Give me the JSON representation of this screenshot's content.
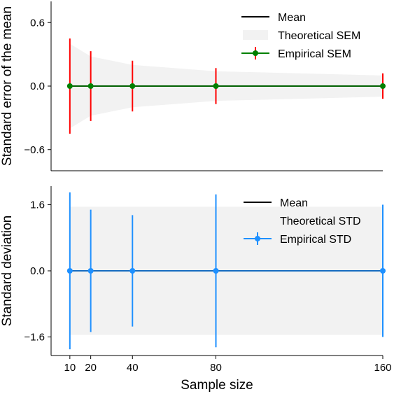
{
  "chart_data": [
    {
      "type": "line",
      "ylabel": "Standard error of the mean",
      "xlabel": "",
      "x": [
        10,
        20,
        40,
        80,
        160
      ],
      "xlim": [
        1,
        160
      ],
      "ylim": [
        -0.8,
        0.8
      ],
      "yticks": [
        -0.6,
        0.0,
        0.6
      ],
      "ytick_labels": [
        "−0.6",
        "0.0",
        "0.6"
      ],
      "series": [
        {
          "name": "Mean",
          "kind": "line",
          "values": [
            0,
            0,
            0,
            0,
            0
          ],
          "color": "#000000"
        },
        {
          "name": "Theoretical SEM",
          "kind": "band",
          "upper": [
            0.4,
            0.28,
            0.2,
            0.14,
            0.1
          ],
          "lower": [
            -0.4,
            -0.28,
            -0.2,
            -0.14,
            -0.1
          ],
          "color": "#f2f2f2"
        },
        {
          "name": "Empirical SEM",
          "kind": "errorbar",
          "values": [
            0,
            0,
            0,
            0,
            0
          ],
          "err": [
            0.45,
            0.33,
            0.24,
            0.17,
            0.12
          ],
          "color": "#008000",
          "errcolor": "#ff0000"
        }
      ],
      "legend": "top-right"
    },
    {
      "type": "line",
      "ylabel": "Standard deviation",
      "xlabel": "Sample size",
      "x": [
        10,
        20,
        40,
        80,
        160
      ],
      "xlim": [
        1,
        160
      ],
      "ylim": [
        -2.05,
        2.05
      ],
      "xticks": [
        10,
        20,
        40,
        80,
        160
      ],
      "xtick_labels": [
        "10",
        "20",
        "40",
        "80",
        "160"
      ],
      "yticks": [
        -1.6,
        0.0,
        1.6
      ],
      "ytick_labels": [
        "−1.6",
        "0.0",
        "1.6"
      ],
      "series": [
        {
          "name": "Mean",
          "kind": "line",
          "values": [
            0,
            0,
            0,
            0,
            0
          ],
          "color": "#000000"
        },
        {
          "name": "Theoretical STD",
          "kind": "band",
          "upper": [
            1.55,
            1.55,
            1.55,
            1.55,
            1.55
          ],
          "lower": [
            -1.55,
            -1.55,
            -1.55,
            -1.55,
            -1.55
          ],
          "color": "#f2f2f2"
        },
        {
          "name": "Empirical STD",
          "kind": "errorbar",
          "values": [
            0,
            0,
            0,
            0,
            0
          ],
          "err": [
            1.9,
            1.48,
            1.35,
            1.85,
            1.6
          ],
          "color": "#1e90ff",
          "errcolor": "#1e90ff"
        }
      ],
      "legend": "top-right"
    }
  ]
}
